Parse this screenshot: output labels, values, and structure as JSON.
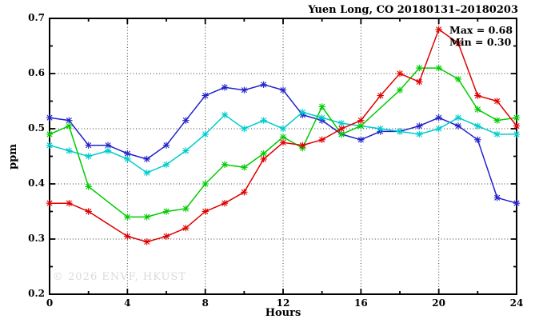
{
  "header": {
    "title": "Yuen Long, CO 20180131–20180203"
  },
  "annotation": {
    "max": "Max = 0.68",
    "min": "Min = 0.30"
  },
  "watermark": {
    "text": "© 2026 ENVF, HKUST"
  },
  "axes": {
    "y_label": "ppm",
    "x_label": "Hours"
  },
  "chart_data": {
    "type": "line",
    "title": "Yuen Long, CO 20180131–20180203",
    "xlabel": "Hours",
    "ylabel": "ppm",
    "xlim": [
      0,
      24
    ],
    "ylim": [
      0.2,
      0.7
    ],
    "x_major_ticks": [
      0,
      4,
      8,
      12,
      16,
      20,
      24
    ],
    "x_minor_ticks": [
      2,
      6,
      10,
      14,
      18,
      22
    ],
    "y_major_ticks": [
      0.2,
      0.3,
      0.4,
      0.5,
      0.6,
      0.7
    ],
    "y_minor_ticks": [
      0.25,
      0.35,
      0.45,
      0.55,
      0.65
    ],
    "grid_x": [
      4,
      8,
      12,
      16,
      20
    ],
    "grid_y": [
      0.3,
      0.4,
      0.5,
      0.6
    ],
    "grid_style": "dotted",
    "legend": "none",
    "marker": "asterisk",
    "annotations": [
      "Max = 0.68",
      "Min = 0.30"
    ],
    "x": [
      0,
      1,
      2,
      3,
      4,
      5,
      6,
      7,
      8,
      9,
      10,
      11,
      12,
      13,
      14,
      15,
      16,
      17,
      18,
      19,
      20,
      21,
      22,
      23,
      24
    ],
    "series": [
      {
        "name": "series-blue",
        "color": "#2222cc",
        "values": [
          0.52,
          0.515,
          0.47,
          0.47,
          0.455,
          0.445,
          0.47,
          0.515,
          0.56,
          0.575,
          0.57,
          0.58,
          0.57,
          0.525,
          0.515,
          0.49,
          0.48,
          0.495,
          0.495,
          0.505,
          0.52,
          0.505,
          0.48,
          0.375,
          0.365
        ]
      },
      {
        "name": "series-cyan",
        "color": "#00cccc",
        "values": [
          0.47,
          0.46,
          0.45,
          0.46,
          0.445,
          0.42,
          0.435,
          0.46,
          0.49,
          0.525,
          0.5,
          0.515,
          0.5,
          0.53,
          0.52,
          0.51,
          0.505,
          0.5,
          0.495,
          0.49,
          0.5,
          0.52,
          0.505,
          0.49,
          0.49
        ]
      },
      {
        "name": "series-green",
        "color": "#00cc00",
        "values": [
          0.49,
          0.505,
          0.395,
          null,
          0.34,
          0.34,
          0.35,
          0.355,
          0.4,
          0.435,
          0.43,
          0.455,
          0.485,
          0.465,
          0.54,
          0.49,
          0.505,
          null,
          0.57,
          0.61,
          0.61,
          0.59,
          0.535,
          0.515,
          0.52
        ]
      },
      {
        "name": "series-red",
        "color": "#e00000",
        "values": [
          0.365,
          0.365,
          0.35,
          null,
          0.305,
          0.295,
          0.305,
          0.32,
          0.35,
          0.365,
          0.385,
          0.445,
          0.475,
          0.47,
          0.48,
          0.5,
          0.515,
          0.56,
          0.6,
          0.585,
          0.68,
          0.655,
          0.56,
          0.55,
          0.505
        ]
      }
    ]
  }
}
